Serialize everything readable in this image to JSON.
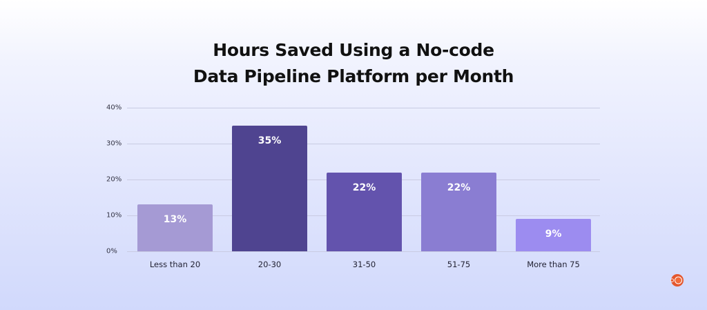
{
  "chart_data": {
    "type": "bar",
    "title": "Hours Saved Using a No-code Data Pipeline Platform per Month",
    "title_lines": [
      "Hours Saved Using a No-code",
      "Data Pipeline Platform per Month"
    ],
    "categories": [
      "Less than 20",
      "20-30",
      "31-50",
      "51-75",
      "More than 75"
    ],
    "values": [
      13,
      35,
      22,
      22,
      9
    ],
    "value_labels": [
      "13%",
      "35%",
      "22%",
      "22%",
      "9%"
    ],
    "xlabel": "",
    "ylabel": "",
    "ylim": [
      0,
      40
    ],
    "y_ticks": [
      "0%",
      "10%",
      "20%",
      "30%",
      "40%"
    ],
    "grid": true,
    "legend": null,
    "bar_colors": [
      "#a59ad4",
      "#4f4490",
      "#6353ad",
      "#8a7dd2",
      "#9c8cf0"
    ]
  },
  "brand": {
    "logo_icon": "orange-circle-logo-icon",
    "logo_color": "#e4572e"
  }
}
